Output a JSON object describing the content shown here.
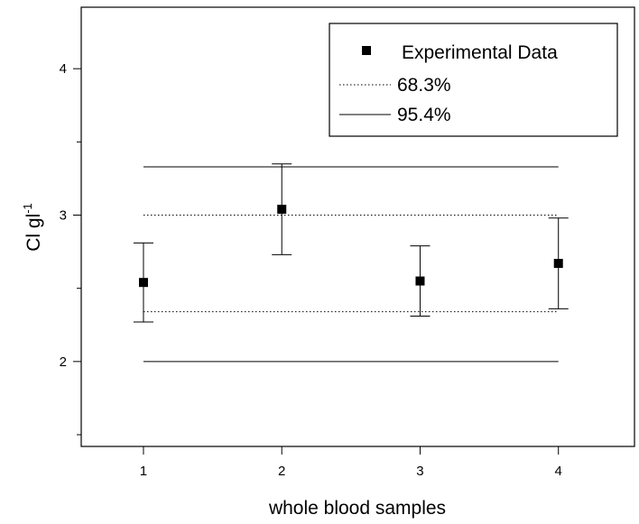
{
  "chart_data": {
    "type": "scatter",
    "xlabel": "whole blood samples",
    "ylabel": {
      "base": "Cl gl",
      "superscript": "-1"
    },
    "xlim": [
      0.55,
      4.55
    ],
    "ylim": [
      1.42,
      4.42
    ],
    "x_ticks": [
      1,
      2,
      3,
      4
    ],
    "y_ticks": [
      2,
      3,
      4
    ],
    "grid": false,
    "legend": {
      "placement": "top-right",
      "entries": [
        {
          "label": "Experimental Data",
          "marker": "square"
        },
        {
          "label": "68.3%",
          "style": "dotted"
        },
        {
          "label": "95.4%",
          "style": "solid"
        }
      ]
    },
    "series": [
      {
        "name": "Experimental Data",
        "x": [
          1,
          2,
          3,
          4
        ],
        "y": [
          2.54,
          3.04,
          2.55,
          2.67
        ],
        "err_low": [
          2.27,
          2.73,
          2.31,
          2.36
        ],
        "err_high": [
          2.81,
          3.35,
          2.79,
          2.98
        ]
      }
    ],
    "bands": [
      {
        "name": "68.3%",
        "style": "dotted",
        "lower": 2.34,
        "upper": 3.0,
        "x_range": [
          1,
          4
        ]
      },
      {
        "name": "95.4%",
        "style": "solid",
        "lower": 2.0,
        "upper": 3.33,
        "x_range": [
          1,
          4
        ]
      }
    ]
  }
}
